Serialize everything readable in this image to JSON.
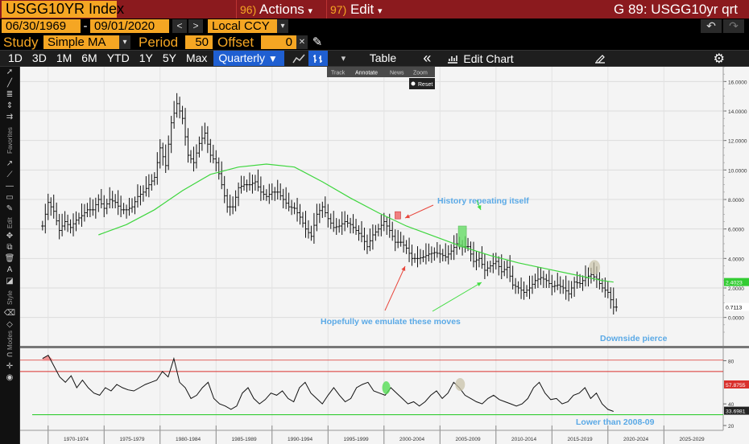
{
  "header": {
    "ticker": "USGG10YR Index",
    "actions_num": "96)",
    "actions_label": "Actions",
    "edit_num": "97)",
    "edit_label": "Edit",
    "right_title": "G 89: USGG10yr qrt",
    "caret": "▾"
  },
  "range": {
    "start": "06/30/1969",
    "dash": "-",
    "end": "09/01/2020",
    "prev": "<",
    "next": ">",
    "currency": "Local CCY",
    "currency_caret": "▾",
    "undo": "↶",
    "redo": "↷"
  },
  "study": {
    "label": "Study",
    "type": "Simple MA",
    "type_caret": "▾",
    "period_label": "Period",
    "period": "50",
    "offset_label": "Offset",
    "offset": "0",
    "close": "✕",
    "pen": "✎"
  },
  "toolbar": {
    "periods": [
      "1D",
      "3D",
      "1M",
      "6M",
      "YTD",
      "1Y",
      "5Y",
      "Max"
    ],
    "frequency": "Quarterly",
    "frequency_caret": "▼",
    "table": "Table",
    "collapse": "«",
    "edit_chart": "Edit Chart",
    "caret": "▾"
  },
  "chart_tools": {
    "track": "Track",
    "annotate": "Annotate",
    "news": "News",
    "zoom": "Zoom",
    "reset": "Reset"
  },
  "left_side": {
    "favorites": "Favorites",
    "edit": "Edit",
    "style": "Style",
    "modes": "Modes"
  },
  "colors": {
    "ma_line": "#3ed63e",
    "price": "#111111",
    "annotation_red": "#e8463c",
    "annotation_text": "#5aa9e6",
    "rsi_upper": "#d9302c",
    "rsi_lower": "#33cc33",
    "ma_label_bg": "#33cc33",
    "red_box": "#f08080",
    "green_box": "#66dd66",
    "grey_oval": "#c9c3aa"
  },
  "chart_data": {
    "type": "line",
    "title": "USGG10YR Index",
    "xlabel": "",
    "ylabel": "",
    "ylim": [
      -1,
      17
    ],
    "grid": true,
    "y_ticks": [
      "16.0000",
      "14.0000",
      "12.0000",
      "10.0000",
      "8.0000",
      "6.0000",
      "4.0000",
      "2.0000",
      "0.0000"
    ],
    "x_ticks": [
      "1970-1974",
      "1975-1979",
      "1980-1984",
      "1985-1989",
      "1990-1994",
      "1995-1999",
      "2000-2004",
      "2005-2009",
      "2010-2014",
      "2015-2019",
      "2020-2024",
      "2025-2029"
    ],
    "series": [
      {
        "name": "",
        "x": [
          1969.5,
          1970.0,
          1970.5,
          1971.0,
          1971.5,
          1972.0,
          1972.5,
          1973.0,
          1973.5,
          1974.0,
          1974.5,
          1975.0,
          1975.5,
          1976.0,
          1976.5,
          1977.0,
          1977.5,
          1978.0,
          1978.5,
          1979.0,
          1979.5,
          1980.0,
          1980.5,
          1981.0,
          1981.5,
          1982.0,
          1982.5,
          1983.0,
          1983.5,
          1984.0,
          1984.5,
          1985.0,
          1985.5,
          1986.0,
          1986.5,
          1987.0,
          1987.5,
          1988.0,
          1988.5,
          1989.0,
          1989.5,
          1990.0,
          1990.5,
          1991.0,
          1991.5,
          1992.0,
          1992.5,
          1993.0,
          1993.5,
          1994.0,
          1994.5,
          1995.0,
          1995.5,
          1996.0,
          1996.5,
          1997.0,
          1997.5,
          1998.0,
          1998.5,
          1999.0,
          1999.5,
          2000.0,
          2000.5,
          2001.0,
          2001.5,
          2002.0,
          2002.5,
          2003.0,
          2003.5,
          2004.0,
          2004.5,
          2005.0,
          2005.5,
          2006.0,
          2006.5,
          2007.0,
          2007.5,
          2008.0,
          2008.5,
          2009.0,
          2009.5,
          2010.0,
          2010.5,
          2011.0,
          2011.5,
          2012.0,
          2012.5,
          2013.0,
          2013.5,
          2014.0,
          2014.5,
          2015.0,
          2015.5,
          2016.0,
          2016.5,
          2017.0,
          2017.5,
          2018.0,
          2018.5,
          2019.0,
          2019.5,
          2020.0,
          2020.5
        ],
        "values": [
          6.2,
          7.8,
          7.2,
          5.9,
          6.5,
          6.1,
          6.6,
          6.9,
          7.3,
          7.3,
          8.0,
          7.4,
          8.0,
          7.8,
          7.3,
          7.3,
          7.5,
          8.2,
          8.5,
          9.0,
          9.5,
          11.5,
          10.3,
          13.2,
          14.5,
          13.5,
          11.0,
          10.5,
          11.8,
          12.5,
          11.0,
          10.5,
          9.0,
          7.5,
          7.5,
          8.8,
          9.0,
          9.0,
          9.2,
          8.5,
          8.2,
          8.5,
          8.5,
          8.0,
          7.5,
          7.4,
          6.8,
          6.0,
          5.5,
          7.0,
          7.5,
          6.7,
          6.1,
          6.2,
          6.5,
          6.3,
          5.9,
          5.5,
          4.8,
          5.6,
          6.0,
          6.5,
          5.9,
          5.1,
          5.1,
          4.7,
          4.0,
          4.0,
          4.1,
          4.3,
          4.4,
          4.3,
          4.1,
          4.5,
          5.0,
          4.8,
          4.8,
          3.8,
          4.0,
          3.2,
          3.5,
          3.8,
          3.1,
          3.4,
          2.2,
          2.0,
          1.7,
          2.0,
          2.5,
          2.7,
          2.5,
          2.1,
          2.2,
          2.0,
          1.6,
          2.4,
          2.3,
          2.7,
          2.9,
          2.6,
          2.0,
          1.7,
          0.7
        ]
      },
      {
        "name": "Simple MA",
        "x": [
          1974.5,
          1977.0,
          1979.5,
          1982.0,
          1984.5,
          1987.0,
          1989.5,
          1992.0,
          1994.5,
          1997.0,
          1999.5,
          2002.0,
          2004.5,
          2007.0,
          2009.5,
          2012.0,
          2014.5,
          2017.0,
          2019.5,
          2020.5
        ],
        "values": [
          5.6,
          6.3,
          7.3,
          8.6,
          9.7,
          10.2,
          10.4,
          10.2,
          9.2,
          8.1,
          7.1,
          6.2,
          5.5,
          4.8,
          4.2,
          3.7,
          3.3,
          2.9,
          2.5,
          2.4
        ]
      }
    ],
    "ma_last_label": "2.4023",
    "last_price_label": "0.7113",
    "rsi": {
      "ylim": [
        20,
        90
      ],
      "y_ticks": [
        "80",
        "40",
        "20"
      ],
      "upper_label": "57.8755",
      "last_label": "33.6981",
      "upper_line": 70,
      "lower_line": 30,
      "values": [
        82,
        85,
        75,
        65,
        60,
        66,
        55,
        62,
        55,
        50,
        48,
        55,
        52,
        58,
        55,
        53,
        52,
        55,
        58,
        60,
        62,
        70,
        65,
        82,
        60,
        55,
        45,
        48,
        55,
        60,
        45,
        40,
        38,
        35,
        38,
        50,
        55,
        45,
        40,
        44,
        50,
        48,
        52,
        45,
        42,
        55,
        60,
        50,
        45,
        40,
        48,
        55,
        48,
        42,
        45,
        55,
        58,
        60,
        52,
        50,
        48,
        55,
        50,
        45,
        40,
        42,
        38,
        42,
        48,
        52,
        45,
        50,
        60,
        55,
        48,
        45,
        42,
        40,
        45,
        48,
        44,
        42,
        40,
        38,
        40,
        45,
        55,
        60,
        50,
        44,
        45,
        40,
        42,
        48,
        50,
        55,
        45,
        50,
        40,
        35,
        33
      ]
    },
    "annotations": [
      {
        "text": "History repeating itself"
      },
      {
        "text": "Hopefully we emulate these moves"
      },
      {
        "text": "Downside pierce"
      },
      {
        "text": "Lower than 2008-09"
      }
    ]
  }
}
